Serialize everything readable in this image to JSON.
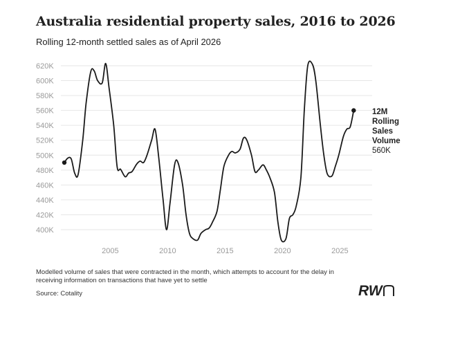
{
  "header": {
    "title": "Australia residential property sales, 2016 to 2026",
    "subtitle": "Rolling 12-month settled sales as of April 2026"
  },
  "footer": {
    "note": "Modelled volume of sales that were contracted in the month, which attempts to account for the delay in receiving information on transactions that have yet to settle",
    "source": "Source: Cotality",
    "logo_text": "RWn"
  },
  "end_label": {
    "lines_bold": [
      "12M",
      "Rolling",
      "Sales",
      "Volume"
    ],
    "value_text": "560K"
  },
  "colors": {
    "line": "#1a1a1a",
    "grid": "#e6e6e6",
    "tick": "#9a9a9a"
  },
  "chart_data": {
    "type": "line",
    "title": "Australia residential property sales, 2016 to 2026",
    "subtitle": "Rolling 12-month settled sales as of April 2026",
    "xlabel": "",
    "ylabel": "",
    "xlim": [
      2000.2,
      2027.5
    ],
    "ylim": [
      380,
      625
    ],
    "yticks": [
      400,
      420,
      440,
      460,
      480,
      500,
      520,
      540,
      560,
      580,
      600,
      620
    ],
    "ytick_labels": [
      "400K",
      "420K",
      "440K",
      "460K",
      "480K",
      "500K",
      "520K",
      "540K",
      "560K",
      "580K",
      "600K",
      "620K"
    ],
    "xticks": [
      2005,
      2010,
      2015,
      2020,
      2025
    ],
    "xtick_labels": [
      "2005",
      "2010",
      "2015",
      "2020",
      "2025"
    ],
    "grid": true,
    "series": [
      {
        "name": "12M Rolling Sales Volume",
        "x": [
          2001.0,
          2001.3,
          2001.6,
          2001.9,
          2002.2,
          2002.6,
          2002.9,
          2003.3,
          2003.6,
          2003.9,
          2004.3,
          2004.6,
          2004.9,
          2005.3,
          2005.6,
          2005.9,
          2006.3,
          2006.6,
          2006.9,
          2007.3,
          2007.6,
          2007.9,
          2008.2,
          2008.6,
          2008.9,
          2009.2,
          2009.6,
          2009.9,
          2010.2,
          2010.6,
          2010.9,
          2011.3,
          2011.6,
          2011.9,
          2012.2,
          2012.6,
          2012.9,
          2013.3,
          2013.6,
          2013.9,
          2014.3,
          2014.6,
          2014.9,
          2015.3,
          2015.6,
          2015.9,
          2016.3,
          2016.6,
          2016.9,
          2017.3,
          2017.6,
          2017.9,
          2018.3,
          2018.6,
          2018.9,
          2019.3,
          2019.6,
          2019.9,
          2020.3,
          2020.6,
          2020.9,
          2021.2,
          2021.6,
          2021.9,
          2022.2,
          2022.6,
          2022.9,
          2023.3,
          2023.6,
          2023.9,
          2024.3,
          2024.6,
          2024.9,
          2025.3,
          2025.6,
          2025.9,
          2026.2
        ],
        "values": [
          490,
          496,
          495,
          476,
          474,
          520,
          570,
          612,
          613,
          600,
          597,
          623,
          590,
          540,
          484,
          481,
          471,
          476,
          478,
          488,
          492,
          490,
          500,
          520,
          535,
          500,
          440,
          400,
          435,
          487,
          490,
          460,
          420,
          395,
          388,
          386,
          395,
          400,
          402,
          410,
          425,
          455,
          485,
          500,
          505,
          503,
          508,
          523,
          520,
          500,
          478,
          480,
          487,
          480,
          470,
          450,
          410,
          386,
          388,
          415,
          420,
          432,
          470,
          560,
          620,
          622,
          600,
          540,
          500,
          475,
          472,
          485,
          500,
          525,
          535,
          538,
          560
        ]
      }
    ],
    "end_point": {
      "x": 2026.2,
      "y": 560
    },
    "start_point": {
      "x": 2001.0,
      "y": 490
    }
  }
}
